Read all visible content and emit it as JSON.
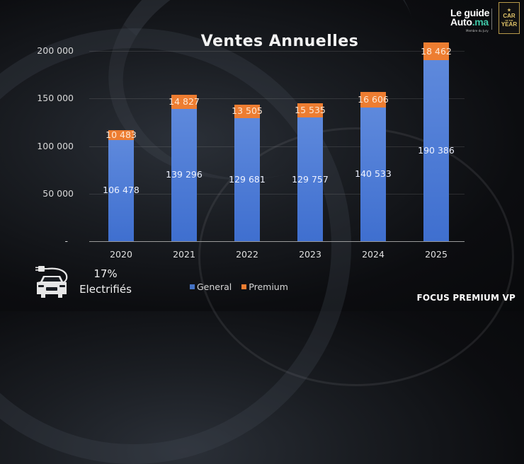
{
  "header": {
    "title": "Ventes Annuelles",
    "logo": {
      "line1": "Le guide",
      "line2_main": "Auto",
      "line2_accent": ".ma",
      "subtitle": "Membre du Jury"
    },
    "badge": {
      "star": "★",
      "line1": "CAR",
      "line2": "OF THE",
      "line3": "YEAR"
    }
  },
  "chart_data": {
    "type": "bar",
    "stacked": true,
    "title": "Ventes Annuelles",
    "categories": [
      "2020",
      "2021",
      "2022",
      "2023",
      "2024",
      "2025"
    ],
    "series": [
      {
        "name": "General",
        "color": "#4472c4",
        "values": [
          106478,
          139296,
          129681,
          129757,
          140533,
          190386
        ]
      },
      {
        "name": "Premium",
        "color": "#ed7d31",
        "values": [
          10483,
          14827,
          13505,
          15535,
          16606,
          18462
        ]
      }
    ],
    "labels": {
      "General": [
        "106 478",
        "139 296",
        "129 681",
        "129 757",
        "140 533",
        "190 386"
      ],
      "Premium": [
        "10 483",
        "14 827",
        "13 505",
        "15 535",
        "16 606",
        "18 462"
      ]
    },
    "yticks": [
      "-",
      "50 000",
      "100 000",
      "150 000",
      "200 000"
    ],
    "ylim": [
      0,
      200000
    ],
    "xlabel": "",
    "ylabel": "",
    "grid": true,
    "legend_position": "bottom"
  },
  "legend": {
    "general": "General",
    "premium": "Premium"
  },
  "ev": {
    "percent": "17%",
    "label": "Electrifiés"
  },
  "footer": {
    "focus": "FOCUS PREMIUM VP"
  }
}
